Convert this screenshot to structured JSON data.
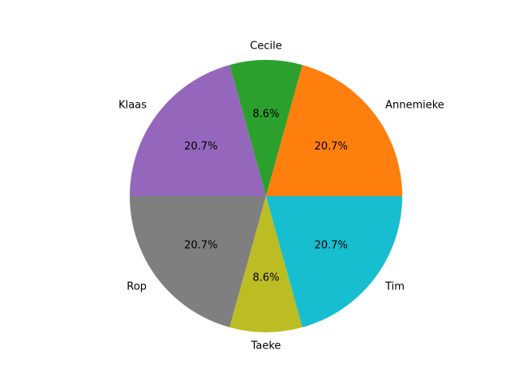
{
  "chart_data": {
    "type": "pie",
    "title": "",
    "start_angle_deg": 0,
    "direction": "counterclockwise",
    "categories": [
      "Annemieke",
      "Cecile",
      "Klaas",
      "Rop",
      "Taeke",
      "Tim"
    ],
    "values": [
      20.7,
      8.6,
      20.7,
      20.7,
      8.6,
      20.7
    ],
    "pct_labels": [
      "20.7%",
      "8.6%",
      "20.7%",
      "20.7%",
      "8.6%",
      "20.7%"
    ],
    "colors": [
      "#ff7f0e",
      "#2ca02c",
      "#9467bd",
      "#7f7f7f",
      "#bcbd22",
      "#17becf"
    ]
  }
}
